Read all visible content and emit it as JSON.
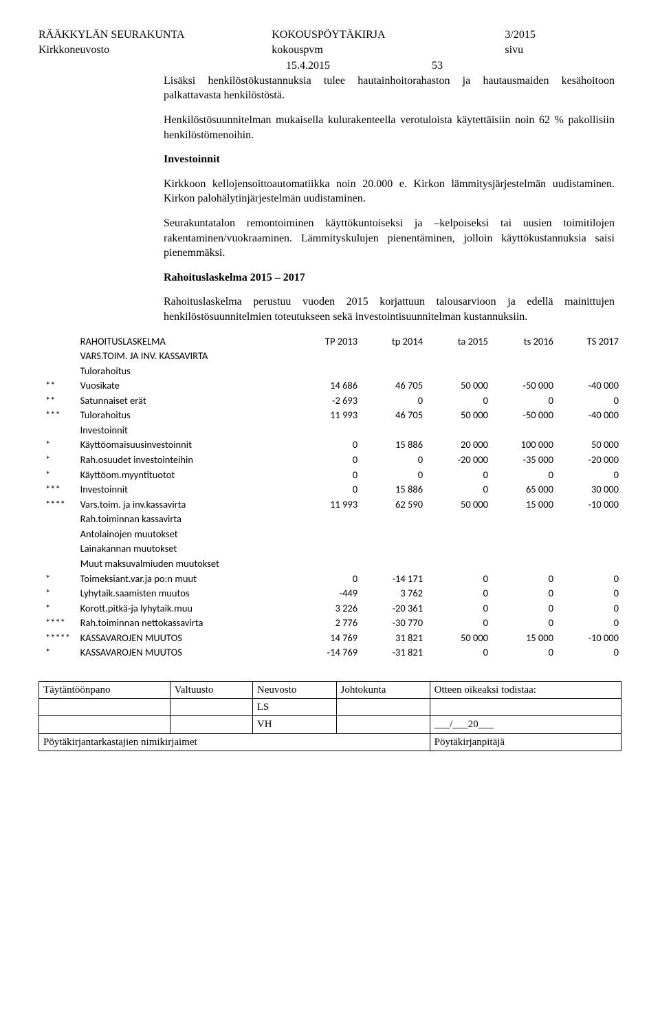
{
  "header": {
    "org": "RÄÄKKYLÄN SEURAKUNTA",
    "doc": "KOKOUSPÖYTÄKIRJA",
    "docnum": "3/2015",
    "sub_org": "Kirkkoneuvosto",
    "sub_doc": "kokouspvm",
    "sub_right": "sivu",
    "date": "15.4.2015",
    "page": "53"
  },
  "body": {
    "p1": "Lisäksi henkilöstökustannuksia tulee hautainhoitorahaston ja hautausmaiden kesähoitoon palkattavasta henkilöstöstä.",
    "p2": "Henkilöstösuunnitelman mukaisella kulurakenteella verotuloista käytettäisiin noin 62 % pakollisiin henkilöstömenoihin.",
    "h_inv": "Investoinnit",
    "p3": "Kirkkoon kellojensoittoautomatiikka noin 20.000 e. Kirkon lämmitysjärjestelmän uudistaminen. Kirkon palohälytinjärjestelmän uudistaminen.",
    "p4": "Seurakuntatalon remontoiminen käyttökuntoiseksi ja –kelpoiseksi tai uusien toimitilojen rakentaminen/vuokraaminen. Lämmityskulujen pienentäminen, jolloin käyttökustannuksia saisi pienemmäksi.",
    "h_rah": "Rahoituslaskelma 2015 – 2017",
    "p5": "Rahoituslaskelma perustuu vuoden 2015 korjattuun talousarvioon ja edellä mainittujen henkilöstösuunnitelmien toteutukseen sekä investointisuunnitelman kustannuksiin."
  },
  "table": {
    "columns": [
      "",
      "RAHOITUSLASKELMA",
      "TP 2013",
      "tp 2014",
      "ta 2015",
      "ts 2016",
      "TS 2017"
    ],
    "col_widths": [
      "48px",
      "300px",
      "90px",
      "90px",
      "90px",
      "90px",
      "90px"
    ],
    "font_family": "Calibri, Arial, sans-serif",
    "font_size_pt": 11,
    "rows": [
      [
        "",
        "VARS.TOIM. JA INV. KASSAVIRTA",
        "",
        "",
        "",
        "",
        ""
      ],
      [
        "",
        "Tulorahoitus",
        "",
        "",
        "",
        "",
        ""
      ],
      [
        "**",
        "Vuosikate",
        "14 686",
        "46 705",
        "50 000",
        "-50 000",
        "-40 000"
      ],
      [
        "**",
        "Satunnaiset erät",
        "-2 693",
        "0",
        "0",
        "0",
        "0"
      ],
      [
        "***",
        "Tulorahoitus",
        "11 993",
        "46 705",
        "50 000",
        "-50 000",
        "-40 000"
      ],
      [
        "",
        "Investoinnit",
        "",
        "",
        "",
        "",
        ""
      ],
      [
        "*",
        "Käyttöomaisuusinvestoinnit",
        "0",
        "15 886",
        "20 000",
        "100 000",
        "50 000"
      ],
      [
        "*",
        "Rah.osuudet investointeihin",
        "0",
        "0",
        "-20 000",
        "-35 000",
        "-20 000"
      ],
      [
        "*",
        "Käyttöom.myyntituotot",
        "0",
        "0",
        "0",
        "0",
        "0"
      ],
      [
        "***",
        "Investoinnit",
        "0",
        "15 886",
        "0",
        "65 000",
        "30 000"
      ],
      [
        "****",
        "Vars.toim. ja inv.kassavirta",
        "11 993",
        "62 590",
        "50 000",
        "15 000",
        "-10 000"
      ],
      [
        "",
        "Rah.toiminnan kassavirta",
        "",
        "",
        "",
        "",
        ""
      ],
      [
        "",
        "Antolainojen muutokset",
        "",
        "",
        "",
        "",
        ""
      ],
      [
        "",
        "Lainakannan muutokset",
        "",
        "",
        "",
        "",
        ""
      ],
      [
        "",
        "Muut maksuvalmiuden muutokset",
        "",
        "",
        "",
        "",
        ""
      ],
      [
        "*",
        "Toimeksiant.var.ja po:n muut",
        "0",
        "-14 171",
        "0",
        "0",
        "0"
      ],
      [
        "*",
        "Lyhytaik.saamisten muutos",
        "-449",
        "3 762",
        "0",
        "0",
        "0"
      ],
      [
        "*",
        "Korott.pitkä-ja lyhytaik.muu",
        "3 226",
        "-20 361",
        "0",
        "0",
        "0"
      ],
      [
        "****",
        "Rah.toiminnan nettokassavirta",
        "2 776",
        "-30 770",
        "0",
        "0",
        "0"
      ],
      [
        "*****",
        "KASSAVAROJEN MUUTOS",
        "14 769",
        "31 821",
        "50 000",
        "15 000",
        "-10 000"
      ],
      [
        "*",
        "KASSAVAROJEN MUUTOS",
        "-14 769",
        "-31 821",
        "0",
        "0",
        "0"
      ]
    ]
  },
  "footer": {
    "row1": [
      "Täytäntöönpano",
      "Valtuusto",
      "Neuvosto",
      "Johtokunta",
      "Otteen oikeaksi todistaa:"
    ],
    "row2": [
      "",
      "",
      "LS",
      "",
      ""
    ],
    "row3": [
      "",
      "",
      "VH",
      "",
      "___/___20___"
    ],
    "bottom_left": "Pöytäkirjantarkastajien nimikirjaimet",
    "bottom_right": "Pöytäkirjanpitäjä"
  }
}
